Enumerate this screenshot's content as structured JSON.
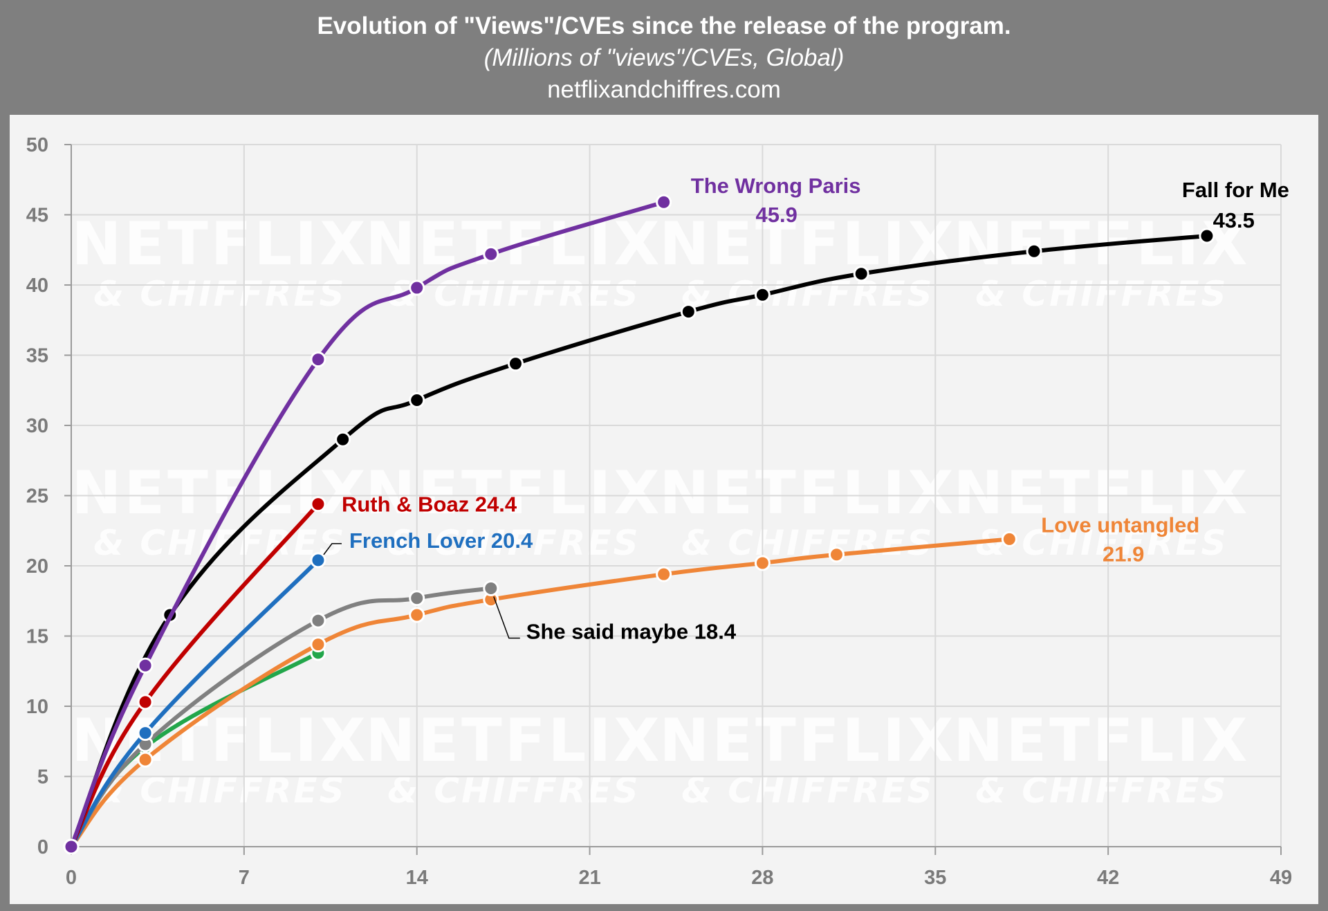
{
  "header": {
    "title": "Evolution of \"Views\"/CVEs since the release of the program.",
    "subtitle": "(Millions of \"views\"/CVEs, Global)",
    "source": "netflixandchiffres.com"
  },
  "watermark": {
    "line1": "NETFLIX",
    "line2": "& CHIFFRES"
  },
  "chart_data": {
    "type": "line",
    "title": "Evolution of \"Views\"/CVEs since the release of the program.",
    "subtitle": "(Millions of \"views\"/CVEs, Global)",
    "xlabel": "",
    "ylabel": "",
    "xlim": [
      0,
      49
    ],
    "ylim": [
      0,
      50
    ],
    "xticks": [
      0,
      7,
      14,
      21,
      28,
      35,
      42,
      49
    ],
    "yticks": [
      0,
      5,
      10,
      15,
      20,
      25,
      30,
      35,
      40,
      45,
      50
    ],
    "grid": true,
    "series": [
      {
        "name": "Green (unlabeled)",
        "color": "#22a64a",
        "labelLines": [],
        "points": [
          [
            0,
            0
          ],
          [
            3,
            7.1
          ],
          [
            10,
            13.8
          ]
        ]
      },
      {
        "name": "Love untangled",
        "color": "#ef8537",
        "labelLines": [
          "Love untangled",
          "21.9"
        ],
        "points": [
          [
            0,
            0
          ],
          [
            3,
            6.2
          ],
          [
            10,
            14.4
          ],
          [
            14,
            16.5
          ],
          [
            17,
            17.6
          ],
          [
            24,
            19.4
          ],
          [
            28,
            20.2
          ],
          [
            31,
            20.8
          ],
          [
            38,
            21.9
          ]
        ]
      },
      {
        "name": "She said maybe",
        "color": "#808080",
        "labelLines": [
          "She said maybe 18.4"
        ],
        "points": [
          [
            0,
            0
          ],
          [
            3,
            7.3
          ],
          [
            10,
            16.1
          ],
          [
            14,
            17.7
          ],
          [
            17,
            18.4
          ]
        ]
      },
      {
        "name": "French Lover",
        "color": "#1f6fbf",
        "labelLines": [
          "French Lover 20.4"
        ],
        "points": [
          [
            0,
            0
          ],
          [
            3,
            8.1
          ],
          [
            10,
            20.4
          ]
        ]
      },
      {
        "name": "Ruth & Boaz",
        "color": "#c00000",
        "labelLines": [
          "Ruth & Boaz 24.4"
        ],
        "points": [
          [
            0,
            0
          ],
          [
            3,
            10.3
          ],
          [
            10,
            24.4
          ]
        ]
      },
      {
        "name": "Fall for Me",
        "color": "#000000",
        "labelLines": [
          "Fall for Me",
          "43.5"
        ],
        "points": [
          [
            0,
            0
          ],
          [
            4,
            16.5
          ],
          [
            11,
            29.0
          ],
          [
            14,
            31.8
          ],
          [
            18,
            34.4
          ],
          [
            25,
            38.1
          ],
          [
            28,
            39.3
          ],
          [
            32,
            40.8
          ],
          [
            39,
            42.4
          ],
          [
            46,
            43.5
          ]
        ]
      },
      {
        "name": "The Wrong Paris",
        "color": "#7030a0",
        "labelLines": [
          "The Wrong Paris",
          "45.9"
        ],
        "points": [
          [
            0,
            0
          ],
          [
            3,
            12.9
          ],
          [
            10,
            34.7
          ],
          [
            14,
            39.8
          ],
          [
            17,
            42.2
          ],
          [
            24,
            45.9
          ]
        ]
      }
    ]
  }
}
